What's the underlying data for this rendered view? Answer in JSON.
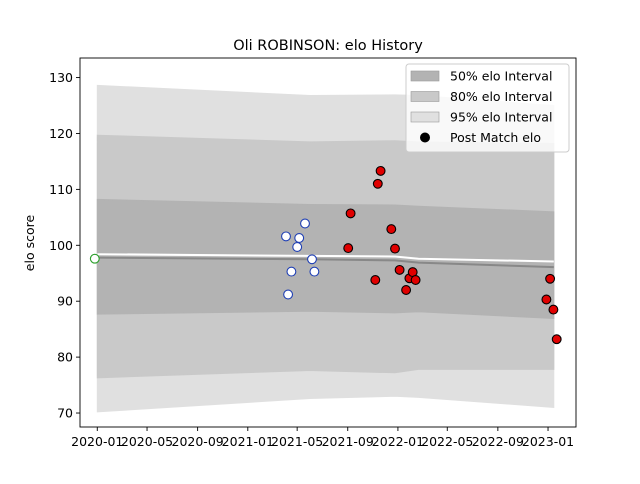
{
  "chart_data": {
    "type": "scatter",
    "title": "Oli ROBINSON: elo History",
    "xlabel": "",
    "ylabel": "elo score",
    "xlim": [
      "2019-11-20",
      "2023-03-10"
    ],
    "ylim": [
      67.5,
      133.5
    ],
    "x_tick_labels": [
      "2020-01",
      "2020-05",
      "2020-09",
      "2021-01",
      "2021-05",
      "2021-09",
      "2022-01",
      "2022-05",
      "2022-09",
      "2023-01"
    ],
    "x_tick_dates": [
      "2020-01-01",
      "2020-05-01",
      "2020-09-01",
      "2021-01-01",
      "2021-05-01",
      "2021-09-01",
      "2022-01-01",
      "2022-05-01",
      "2022-09-01",
      "2023-01-01"
    ],
    "y_ticks": [
      70,
      80,
      90,
      100,
      110,
      120,
      130
    ],
    "grid": false,
    "legend": {
      "placement": "top-right",
      "entries": [
        {
          "label": "50% elo Interval",
          "kind": "patch",
          "color": "#b3b3b3"
        },
        {
          "label": "80% elo Interval",
          "kind": "patch",
          "color": "#c9c9c9"
        },
        {
          "label": "95% elo Interval",
          "kind": "patch",
          "color": "#e0e0e0"
        },
        {
          "label": "Post Match elo",
          "kind": "marker",
          "color": "#000000"
        }
      ]
    },
    "intervals": [
      {
        "name": "95% elo Interval",
        "color": "#e0e0e0",
        "x": [
          "2020-01-01",
          "2021-06-01",
          "2021-12-25",
          "2022-02-20",
          "2023-01-15"
        ],
        "lower": [
          70.2,
          72.6,
          73.0,
          72.8,
          71.0
        ],
        "upper": [
          128.6,
          126.8,
          126.9,
          126.8,
          125.0
        ]
      },
      {
        "name": "80% elo Interval",
        "color": "#c9c9c9",
        "x": [
          "2020-01-01",
          "2021-06-01",
          "2021-12-25",
          "2022-02-20",
          "2023-01-15"
        ],
        "lower": [
          76.3,
          77.6,
          77.2,
          77.8,
          77.8
        ],
        "upper": [
          119.7,
          118.5,
          118.7,
          118.5,
          118.2
        ]
      },
      {
        "name": "50% elo Interval",
        "color": "#b3b3b3",
        "x": [
          "2020-01-01",
          "2021-06-01",
          "2021-12-25",
          "2022-02-20",
          "2023-01-15"
        ],
        "lower": [
          87.7,
          88.2,
          87.9,
          88.1,
          86.9
        ],
        "upper": [
          108.2,
          107.3,
          107.2,
          107.0,
          106.0
        ]
      }
    ],
    "mean_line": {
      "color": "#888888",
      "x": [
        "2020-01-01",
        "2021-06-01",
        "2021-12-25",
        "2022-02-20",
        "2023-01-15"
      ],
      "y": [
        97.8,
        97.5,
        97.3,
        96.9,
        96.1
      ]
    },
    "white_line": {
      "color": "#ffffff",
      "x": [
        "2020-01-01",
        "2021-06-01",
        "2021-12-25",
        "2022-02-20",
        "2023-01-15"
      ],
      "y": [
        98.4,
        98.1,
        98.0,
        97.6,
        97.1
      ]
    },
    "series": [
      {
        "name": "",
        "edge": "#2ca02c",
        "fill": "#ffffff",
        "points": [
          {
            "x": "2019-12-26",
            "y": 97.6
          }
        ]
      },
      {
        "name": "",
        "edge": "#1f3fb4",
        "fill": "#ffffff",
        "points": [
          {
            "x": "2021-04-04",
            "y": 101.6
          },
          {
            "x": "2021-04-09",
            "y": 91.2
          },
          {
            "x": "2021-04-17",
            "y": 95.3
          },
          {
            "x": "2021-05-01",
            "y": 99.7
          },
          {
            "x": "2021-05-06",
            "y": 101.3
          },
          {
            "x": "2021-05-20",
            "y": 103.9
          },
          {
            "x": "2021-06-06",
            "y": 97.5
          },
          {
            "x": "2021-06-12",
            "y": 95.3
          }
        ]
      },
      {
        "name": "",
        "edge": "#000000",
        "fill": "#e00000",
        "points": [
          {
            "x": "2021-09-02",
            "y": 99.5
          },
          {
            "x": "2021-09-08",
            "y": 105.7
          },
          {
            "x": "2021-11-07",
            "y": 93.8
          },
          {
            "x": "2021-11-13",
            "y": 111.0
          },
          {
            "x": "2021-11-20",
            "y": 113.3
          },
          {
            "x": "2021-12-16",
            "y": 102.9
          },
          {
            "x": "2021-12-25",
            "y": 99.4
          },
          {
            "x": "2022-01-05",
            "y": 95.6
          },
          {
            "x": "2022-01-21",
            "y": 92.0
          },
          {
            "x": "2022-01-29",
            "y": 94.1
          },
          {
            "x": "2022-02-06",
            "y": 95.2
          },
          {
            "x": "2022-02-13",
            "y": 93.8
          },
          {
            "x": "2022-12-28",
            "y": 90.3
          },
          {
            "x": "2023-01-06",
            "y": 94.0
          },
          {
            "x": "2023-01-14",
            "y": 88.5
          },
          {
            "x": "2023-01-22",
            "y": 83.2
          }
        ]
      }
    ]
  }
}
